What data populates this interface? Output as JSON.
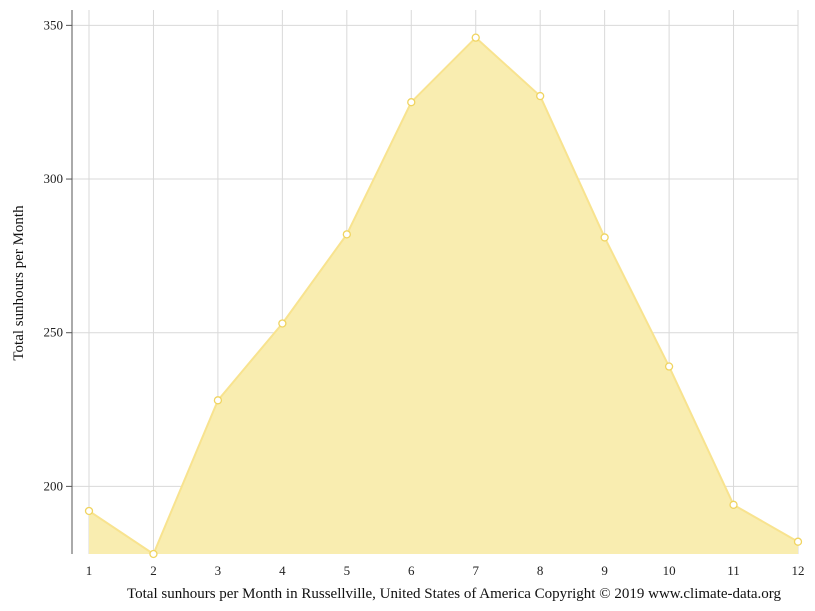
{
  "chart_data": {
    "type": "area",
    "x": [
      1,
      2,
      3,
      4,
      5,
      6,
      7,
      8,
      9,
      10,
      11,
      12
    ],
    "series": [
      {
        "values": [
          192,
          178,
          228,
          253,
          282,
          325,
          346,
          327,
          281,
          239,
          194,
          182
        ]
      }
    ],
    "ylabel": "Total sunhours per Month",
    "xlabel": "",
    "caption": "Total sunhours per Month in Russellville, United States of America Copyright © 2019 www.climate-data.org",
    "ylim": [
      178,
      355
    ],
    "xlim": [
      1,
      12
    ],
    "y_ticks": [
      200,
      250,
      300,
      350
    ],
    "x_ticks": [
      1,
      2,
      3,
      4,
      5,
      6,
      7,
      8,
      9,
      10,
      11,
      12
    ],
    "grid": true,
    "colors": {
      "fill": "#f9edb0",
      "line": "#f8e38f",
      "marker_stroke": "#f0d460",
      "marker_fill": "#ffffff"
    }
  }
}
